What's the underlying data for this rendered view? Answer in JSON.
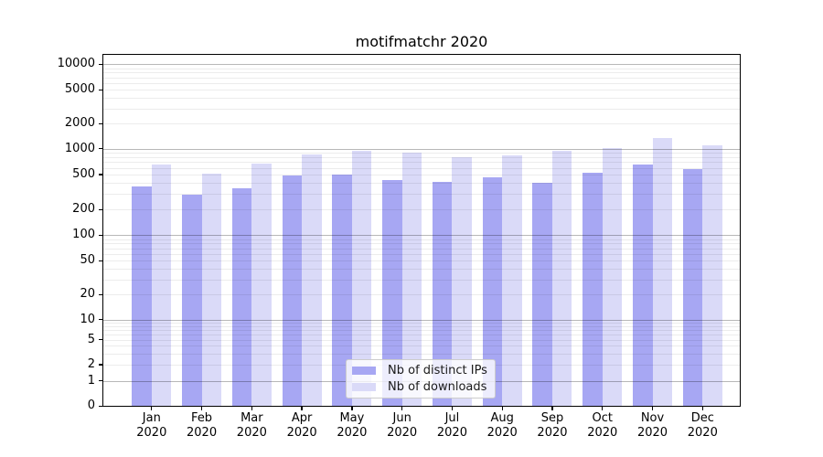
{
  "chart_data": {
    "type": "bar",
    "title": "motifmatchr 2020",
    "categories": [
      "Jan 2020",
      "Feb 2020",
      "Mar 2020",
      "Apr 2020",
      "May 2020",
      "Jun 2020",
      "Jul 2020",
      "Aug 2020",
      "Sep 2020",
      "Oct 2020",
      "Nov 2020",
      "Dec 2020"
    ],
    "series": [
      {
        "name": "Nb of distinct IPs",
        "color": "#a7a7f3",
        "values": [
          365,
          295,
          350,
          490,
          500,
          435,
          410,
          460,
          405,
          520,
          650,
          570
        ]
      },
      {
        "name": "Nb of downloads",
        "color": "#dadaf8",
        "values": [
          650,
          515,
          670,
          860,
          950,
          885,
          800,
          840,
          940,
          1000,
          1350,
          1100
        ]
      }
    ],
    "xlabel": "",
    "ylabel": "",
    "yscale": "symlog",
    "y_ticks": [
      0,
      1,
      2,
      5,
      10,
      20,
      50,
      100,
      200,
      500,
      1000,
      2000,
      5000,
      10000
    ],
    "ylim": [
      0,
      13000
    ],
    "grid": true,
    "legend_position": "lower center"
  }
}
